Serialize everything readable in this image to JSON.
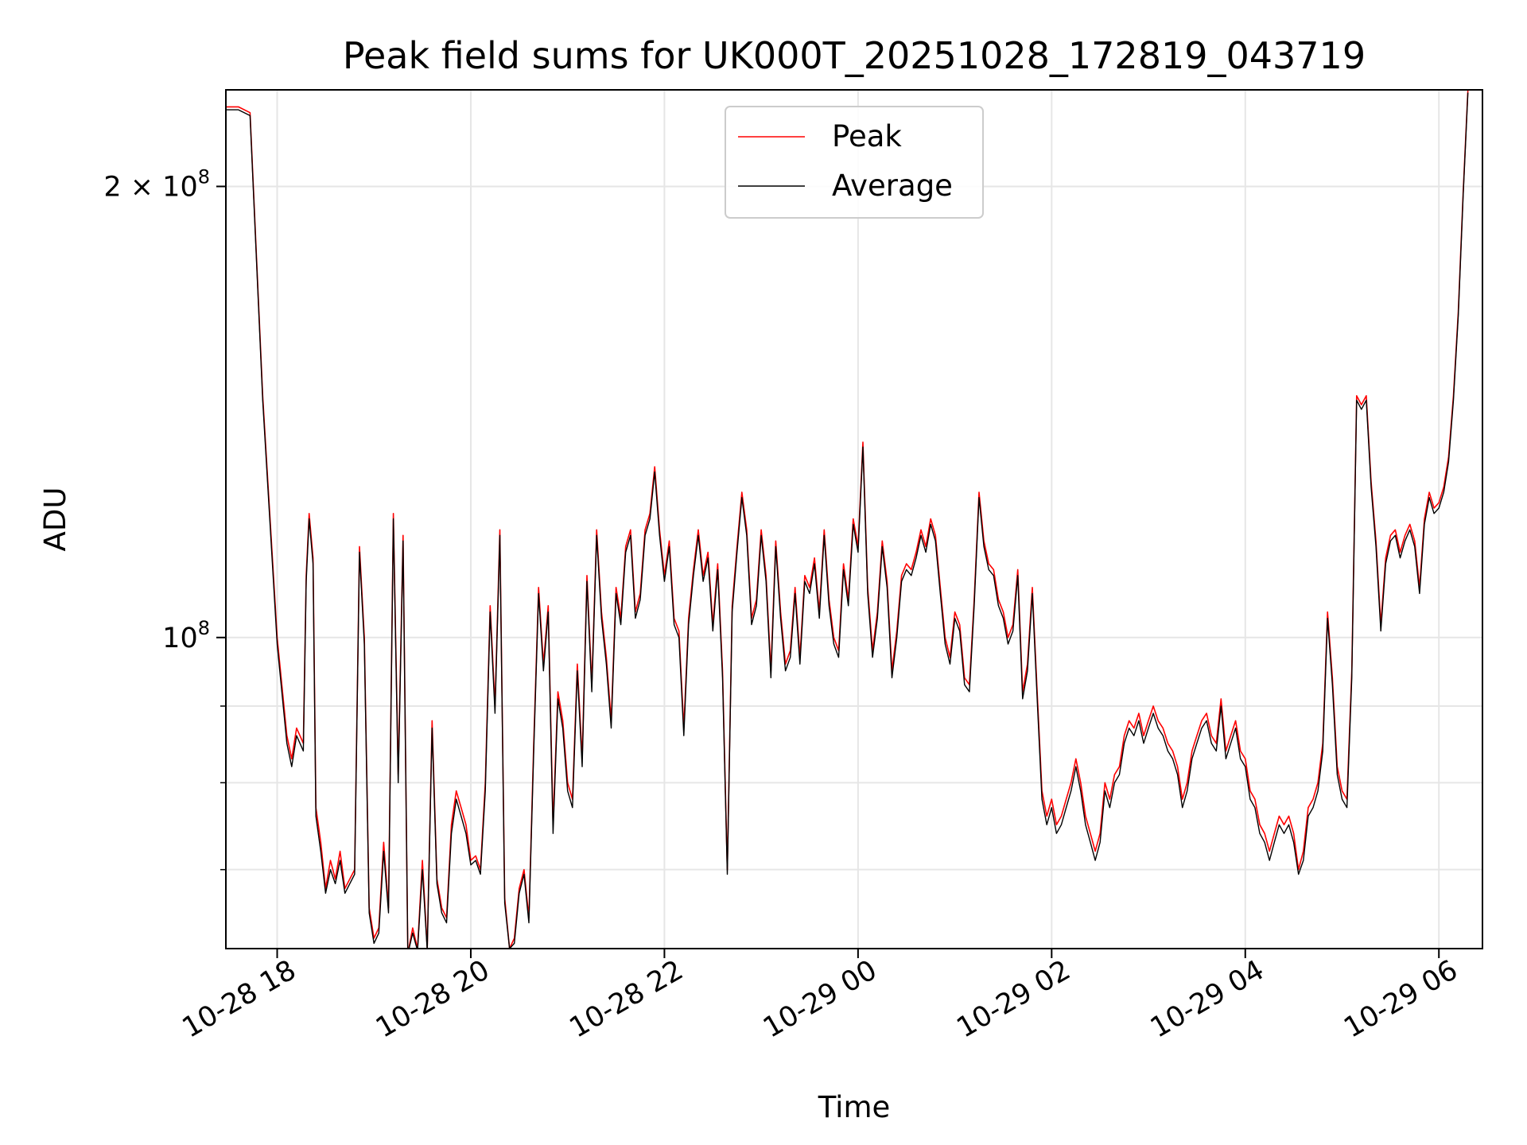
{
  "chart_data": {
    "type": "line",
    "title": "Peak field sums for UK000T_20251028_172819_043719",
    "xlabel": "Time",
    "ylabel": "ADU",
    "yscale": "log",
    "ylim": [
      62000000,
      232000000
    ],
    "xlim_hours": [
      17.47,
      30.45
    ],
    "grid": true,
    "legend_position": "upper center",
    "x_ticks": [
      {
        "hour": 18,
        "label": "10-28 18"
      },
      {
        "hour": 20,
        "label": "10-28 20"
      },
      {
        "hour": 22,
        "label": "10-28 22"
      },
      {
        "hour": 24,
        "label": "10-29 00"
      },
      {
        "hour": 26,
        "label": "10-29 02"
      },
      {
        "hour": 28,
        "label": "10-29 04"
      },
      {
        "hour": 30,
        "label": "10-29 06"
      }
    ],
    "y_major_ticks": [
      {
        "value": 100000000,
        "base": "10",
        "exp": "8",
        "prefix": ""
      },
      {
        "value": 200000000,
        "base": "10",
        "exp": "8",
        "prefix": "2 × "
      }
    ],
    "y_minor_gridlines": [
      70000000,
      80000000,
      90000000
    ],
    "x_hours": [
      17.47,
      17.6,
      17.72,
      17.85,
      18.0,
      18.1,
      18.15,
      18.2,
      18.27,
      18.3,
      18.33,
      18.37,
      18.4,
      18.45,
      18.5,
      18.55,
      18.6,
      18.65,
      18.7,
      18.75,
      18.8,
      18.85,
      18.9,
      18.95,
      19.0,
      19.05,
      19.1,
      19.15,
      19.2,
      19.25,
      19.3,
      19.35,
      19.4,
      19.45,
      19.5,
      19.55,
      19.6,
      19.65,
      19.7,
      19.75,
      19.8,
      19.85,
      19.9,
      19.95,
      20.0,
      20.05,
      20.1,
      20.15,
      20.2,
      20.25,
      20.3,
      20.35,
      20.4,
      20.45,
      20.5,
      20.55,
      20.6,
      20.65,
      20.7,
      20.75,
      20.8,
      20.85,
      20.9,
      20.95,
      21.0,
      21.05,
      21.1,
      21.15,
      21.2,
      21.25,
      21.3,
      21.35,
      21.4,
      21.45,
      21.5,
      21.55,
      21.6,
      21.65,
      21.7,
      21.75,
      21.8,
      21.85,
      21.9,
      21.95,
      22.0,
      22.05,
      22.1,
      22.15,
      22.2,
      22.25,
      22.3,
      22.35,
      22.4,
      22.45,
      22.5,
      22.55,
      22.6,
      22.65,
      22.7,
      22.75,
      22.8,
      22.85,
      22.9,
      22.95,
      23.0,
      23.05,
      23.1,
      23.15,
      23.2,
      23.25,
      23.3,
      23.35,
      23.4,
      23.45,
      23.5,
      23.55,
      23.6,
      23.65,
      23.7,
      23.75,
      23.8,
      23.85,
      23.9,
      23.95,
      24.0,
      24.05,
      24.1,
      24.15,
      24.2,
      24.25,
      24.3,
      24.35,
      24.4,
      24.45,
      24.5,
      24.55,
      24.6,
      24.65,
      24.7,
      24.75,
      24.8,
      24.85,
      24.9,
      24.95,
      25.0,
      25.05,
      25.1,
      25.15,
      25.2,
      25.25,
      25.3,
      25.35,
      25.4,
      25.45,
      25.5,
      25.55,
      25.6,
      25.65,
      25.7,
      25.75,
      25.8,
      25.85,
      25.9,
      25.95,
      26.0,
      26.05,
      26.1,
      26.15,
      26.2,
      26.25,
      26.3,
      26.35,
      26.4,
      26.45,
      26.5,
      26.55,
      26.6,
      26.65,
      26.7,
      26.75,
      26.8,
      26.85,
      26.9,
      26.95,
      27.0,
      27.05,
      27.1,
      27.15,
      27.2,
      27.25,
      27.3,
      27.35,
      27.4,
      27.45,
      27.5,
      27.55,
      27.6,
      27.65,
      27.7,
      27.75,
      27.8,
      27.85,
      27.9,
      27.95,
      28.0,
      28.05,
      28.1,
      28.15,
      28.2,
      28.25,
      28.3,
      28.35,
      28.4,
      28.45,
      28.5,
      28.55,
      28.6,
      28.65,
      28.7,
      28.75,
      28.8,
      28.85,
      28.9,
      28.95,
      29.0,
      29.05,
      29.1,
      29.15,
      29.2,
      29.25,
      29.3,
      29.35,
      29.4,
      29.45,
      29.5,
      29.55,
      29.6,
      29.65,
      29.7,
      29.75,
      29.8,
      29.85,
      29.9,
      29.95,
      30.0,
      30.05,
      30.1,
      30.15,
      30.2,
      30.25,
      30.3,
      30.35,
      30.4,
      30.45
    ],
    "series": [
      {
        "name": "Peak",
        "color": "#ff0000",
        "values": [
          226000000,
          226000000,
          224000000,
          145000000,
          100000000,
          86000000,
          83000000,
          87000000,
          85000000,
          110000000,
          121000000,
          113000000,
          77000000,
          73000000,
          68000000,
          71000000,
          69000000,
          72000000,
          68000000,
          69000000,
          70000000,
          115000000,
          100000000,
          66000000,
          63000000,
          64000000,
          73000000,
          66000000,
          121000000,
          81000000,
          117000000,
          61500000,
          64000000,
          62000000,
          71000000,
          62000000,
          88000000,
          69000000,
          66000000,
          65000000,
          75000000,
          79000000,
          77000000,
          75000000,
          71000000,
          71500000,
          70000000,
          80000000,
          105000000,
          90000000,
          118000000,
          67000000,
          62000000,
          63000000,
          68000000,
          70000000,
          65000000,
          85000000,
          108000000,
          96000000,
          105000000,
          75000000,
          92000000,
          88000000,
          80000000,
          78000000,
          96000000,
          83000000,
          110000000,
          93000000,
          118000000,
          104000000,
          97000000,
          88000000,
          108000000,
          103000000,
          115000000,
          118000000,
          104000000,
          107000000,
          118000000,
          121000000,
          130000000,
          118000000,
          110000000,
          116000000,
          103000000,
          101000000,
          87000000,
          103000000,
          111000000,
          118000000,
          110000000,
          114000000,
          102000000,
          112000000,
          95000000,
          70000000,
          105000000,
          115000000,
          125000000,
          118000000,
          103000000,
          106000000,
          118000000,
          110000000,
          95000000,
          116000000,
          104000000,
          96000000,
          98000000,
          108000000,
          97000000,
          110000000,
          108000000,
          113000000,
          104000000,
          118000000,
          106000000,
          100000000,
          98000000,
          112000000,
          106000000,
          120000000,
          115000000,
          135000000,
          108000000,
          98000000,
          104000000,
          116000000,
          109000000,
          95000000,
          101000000,
          110000000,
          112000000,
          111000000,
          114000000,
          118000000,
          115000000,
          120000000,
          117000000,
          108000000,
          100000000,
          97000000,
          104000000,
          102000000,
          94000000,
          93000000,
          106000000,
          125000000,
          116000000,
          112000000,
          111000000,
          106000000,
          104000000,
          100000000,
          102000000,
          111000000,
          92000000,
          96000000,
          108000000,
          92000000,
          79000000,
          76000000,
          78000000,
          75000000,
          76000000,
          78000000,
          80000000,
          83000000,
          80000000,
          76000000,
          74000000,
          72000000,
          74000000,
          80000000,
          78000000,
          81000000,
          82000000,
          86000000,
          88000000,
          87000000,
          89000000,
          86000000,
          88000000,
          90000000,
          88000000,
          87000000,
          85000000,
          84000000,
          82000000,
          78000000,
          80000000,
          84000000,
          86000000,
          88000000,
          89000000,
          86000000,
          85000000,
          91000000,
          84000000,
          86000000,
          88000000,
          84000000,
          83000000,
          79000000,
          78000000,
          75000000,
          74000000,
          72000000,
          74000000,
          76000000,
          75000000,
          76000000,
          74000000,
          70000000,
          72000000,
          77000000,
          78000000,
          80000000,
          85000000,
          104000000,
          94000000,
          82000000,
          79000000,
          78000000,
          95000000,
          145000000,
          143000000,
          145000000,
          127000000,
          116000000,
          102000000,
          113000000,
          117000000,
          118000000,
          114000000,
          117000000,
          119000000,
          116000000,
          108000000,
          120000000,
          125000000,
          122000000,
          123000000,
          126000000,
          132000000,
          145000000,
          165000000,
          198000000,
          232000000
        ]
      },
      {
        "name": "Average",
        "color": "#000000",
        "values": [
          225000000,
          225000000,
          223000000,
          144000000,
          99000000,
          85000000,
          82000000,
          86000000,
          84000000,
          109000000,
          120000000,
          112000000,
          76000000,
          72000000,
          67500000,
          70000000,
          68500000,
          71000000,
          67500000,
          68500000,
          69500000,
          114000000,
          99000000,
          65500000,
          62500000,
          63500000,
          72000000,
          65500000,
          120000000,
          80000000,
          116000000,
          61500000,
          63500000,
          61800000,
          70000000,
          61800000,
          87000000,
          68500000,
          65500000,
          64500000,
          74000000,
          78000000,
          76000000,
          74000000,
          70500000,
          71000000,
          69500000,
          79000000,
          104000000,
          89000000,
          117000000,
          66500000,
          62000000,
          62500000,
          67500000,
          69500000,
          64500000,
          84000000,
          107000000,
          95000000,
          104000000,
          74000000,
          91000000,
          87000000,
          79000000,
          77000000,
          95000000,
          82000000,
          109000000,
          92000000,
          117000000,
          103000000,
          96000000,
          87000000,
          107000000,
          102000000,
          114000000,
          117000000,
          103000000,
          106000000,
          117000000,
          120000000,
          129000000,
          117000000,
          109000000,
          115000000,
          102000000,
          100000000,
          86000000,
          102000000,
          110000000,
          117000000,
          109000000,
          113000000,
          101000000,
          111000000,
          94000000,
          69500000,
          104000000,
          114000000,
          124000000,
          117000000,
          102000000,
          105000000,
          117000000,
          109000000,
          94000000,
          115000000,
          103000000,
          95000000,
          97000000,
          107000000,
          96000000,
          109000000,
          107000000,
          112000000,
          103000000,
          117000000,
          105000000,
          99000000,
          97000000,
          111000000,
          105000000,
          119000000,
          114000000,
          134000000,
          107000000,
          97000000,
          103000000,
          115000000,
          108000000,
          94000000,
          100000000,
          109000000,
          111000000,
          110000000,
          113000000,
          117000000,
          114000000,
          119000000,
          116000000,
          107000000,
          99000000,
          96000000,
          103000000,
          101000000,
          93000000,
          92000000,
          105000000,
          124000000,
          115000000,
          111000000,
          110000000,
          105000000,
          103000000,
          99000000,
          101000000,
          110000000,
          91000000,
          95000000,
          107000000,
          91000000,
          78000000,
          75000000,
          77000000,
          74000000,
          75000000,
          77000000,
          79000000,
          82000000,
          79000000,
          75000000,
          73000000,
          71000000,
          73000000,
          79000000,
          77000000,
          80000000,
          81000000,
          85000000,
          87000000,
          86000000,
          88000000,
          85000000,
          87000000,
          89000000,
          87000000,
          86000000,
          84000000,
          83000000,
          81000000,
          77000000,
          79000000,
          83000000,
          85000000,
          87000000,
          88000000,
          85000000,
          84000000,
          90000000,
          83000000,
          85000000,
          87000000,
          83000000,
          82000000,
          78000000,
          77000000,
          74000000,
          73000000,
          71000000,
          73000000,
          75000000,
          74000000,
          75000000,
          73000000,
          69500000,
          71000000,
          76000000,
          77000000,
          79000000,
          84000000,
          103000000,
          93000000,
          81000000,
          78000000,
          77000000,
          94000000,
          144000000,
          142000000,
          144000000,
          126000000,
          115000000,
          101000000,
          112000000,
          116000000,
          117000000,
          113000000,
          116000000,
          118000000,
          115000000,
          107000000,
          119000000,
          124000000,
          121000000,
          122000000,
          125000000,
          131000000,
          144000000,
          164000000,
          197000000,
          231000000
        ]
      }
    ]
  }
}
